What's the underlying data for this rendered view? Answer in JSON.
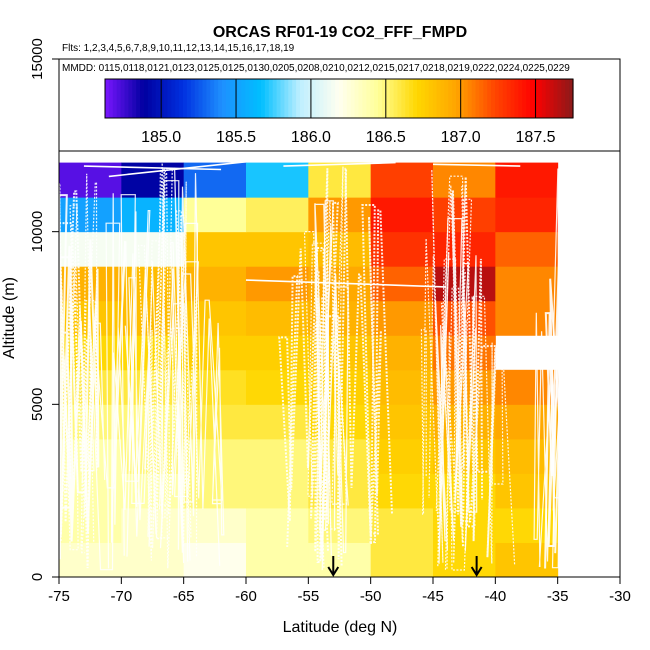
{
  "chart_data": {
    "type": "heatmap",
    "title": "ORCAS RF01-19 CO2_FFF_FMPD",
    "flights_label": "Flts: 1,2,3,4,5,6,7,8,9,10,11,12,13,14,15,16,17,18,19",
    "dates_label": "MMDD: 0115,0118,0121,0123,0125,0125,0130,0205,0208,0210,0212,0215,0217,0218,0219,0222,0224,0225,0229",
    "xlabel": "Latitude (deg N)",
    "ylabel": "Altitude (m)",
    "xlim": [
      -75,
      -30
    ],
    "ylim": [
      0,
      15000
    ],
    "xticks": [
      -75,
      -70,
      -65,
      -60,
      -55,
      -50,
      -45,
      -40,
      -35,
      -30
    ],
    "yticks": [
      0,
      5000,
      10000,
      15000
    ],
    "colorbar": {
      "min": 184.625,
      "max": 187.75,
      "ticks": [
        185.0,
        185.5,
        186.0,
        186.5,
        187.0,
        187.5
      ],
      "tick_labels": [
        "185.0",
        "185.5",
        "186.0",
        "186.5",
        "187.0",
        "187.5"
      ],
      "colors": [
        "#7a16ff",
        "#0000a0",
        "#0030e0",
        "#1e90ff",
        "#00bfff",
        "#bfefff",
        "#fffff0",
        "#ffff99",
        "#ffd700",
        "#ffa500",
        "#ff4500",
        "#ff0000",
        "#8b1a1a"
      ]
    },
    "lat_bins": [
      -75,
      -70,
      -65,
      -60,
      -55,
      -50,
      -45,
      -40,
      -35
    ],
    "alt_bins_m": [
      0,
      1000,
      2000,
      3000,
      4000,
      5000,
      6000,
      7000,
      8000,
      9000,
      10000,
      11000,
      12000
    ],
    "cells": [
      [
        186.3,
        186.3,
        186.2,
        186.4,
        186.4,
        186.6,
        186.7,
        186.8
      ],
      [
        186.4,
        186.3,
        186.3,
        186.4,
        186.5,
        186.6,
        186.7,
        186.7
      ],
      [
        186.4,
        186.4,
        186.5,
        186.5,
        186.6,
        186.7,
        186.7,
        186.8
      ],
      [
        186.4,
        186.5,
        186.5,
        186.5,
        186.6,
        186.75,
        186.8,
        186.85
      ],
      [
        186.5,
        186.5,
        186.6,
        186.6,
        186.7,
        186.8,
        186.9,
        186.95
      ],
      [
        186.6,
        186.6,
        186.65,
        186.7,
        186.75,
        186.85,
        187.0,
        187.05
      ],
      [
        186.7,
        186.7,
        186.75,
        186.75,
        186.8,
        186.9,
        187.1,
        null
      ],
      [
        186.8,
        186.85,
        186.8,
        186.85,
        186.9,
        187.0,
        187.2,
        187.05
      ],
      [
        186.9,
        186.85,
        186.9,
        187.0,
        186.95,
        187.15,
        187.65,
        187.05
      ],
      [
        186.15,
        186.15,
        186.8,
        186.8,
        186.85,
        187.3,
        187.35,
        187.15
      ],
      [
        185.5,
        185.6,
        186.45,
        186.55,
        187.0,
        187.4,
        187.25,
        187.35
      ],
      [
        184.7,
        184.9,
        185.3,
        185.7,
        186.6,
        187.25,
        187.05,
        187.4
      ]
    ],
    "markers": [
      {
        "lat": -53,
        "label": "arrow"
      },
      {
        "lat": -41.5,
        "label": "arrow"
      }
    ]
  }
}
